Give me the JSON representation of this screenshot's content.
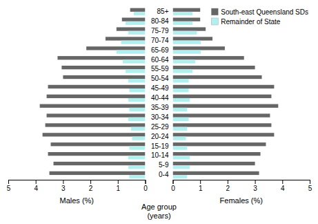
{
  "chart_data": [
    {
      "type": "bar",
      "orientation": "horizontal",
      "tick_labels": "x",
      "xlabel": "Males (%)",
      "categories": [
        "0-4",
        "5-9",
        "10-14",
        "15-19",
        "20-24",
        "25-29",
        "30-34",
        "35-39",
        "40-44",
        "45-49",
        "50-54",
        "55-59",
        "60-64",
        "65-69",
        "70-74",
        "75-79",
        "80-84",
        "85+"
      ],
      "series": [
        {
          "color": "#666666",
          "values": [
            3.5,
            3.35,
            3.55,
            3.45,
            3.75,
            3.65,
            3.6,
            3.85,
            3.6,
            3.55,
            3.0,
            3.05,
            3.2,
            2.15,
            1.45,
            1.05,
            0.85,
            0.55
          ]
        },
        {
          "color": "#b2f0f0",
          "values": [
            0.58,
            0.62,
            0.62,
            0.58,
            0.48,
            0.52,
            0.62,
            0.58,
            0.62,
            0.58,
            0.62,
            0.72,
            0.82,
            1.05,
            0.88,
            0.62,
            0.72,
            0.42
          ]
        }
      ],
      "xlim": [
        5,
        0
      ],
      "xticks": [
        5,
        4,
        3,
        2,
        1,
        0
      ]
    },
    {
      "type": "bar",
      "orientation": "horizontal",
      "xlabel": "Females (%)",
      "ylabel": "Age group\n(years)",
      "categories": [
        "0-4",
        "5-9",
        "10-14",
        "15-19",
        "20-24",
        "25-29",
        "30-34",
        "35-39",
        "40-44",
        "45-49",
        "50-54",
        "55-59",
        "60-64",
        "65-69",
        "70-74",
        "75-79",
        "80-84",
        "85+"
      ],
      "series": [
        {
          "name": "South-east Queensland SDs",
          "color": "#666666",
          "values": [
            3.15,
            3.0,
            3.2,
            3.4,
            3.7,
            3.6,
            3.55,
            3.85,
            3.6,
            3.7,
            3.25,
            3.0,
            2.6,
            1.9,
            1.45,
            1.2,
            1.0,
            1.0
          ]
        },
        {
          "name": "Remainder of State",
          "color": "#b2f0f0",
          "values": [
            0.52,
            0.62,
            0.62,
            0.52,
            0.48,
            0.52,
            0.58,
            0.52,
            0.62,
            0.58,
            0.58,
            0.72,
            0.82,
            1.02,
            1.02,
            0.88,
            0.72,
            0.72
          ]
        }
      ],
      "xlim": [
        0,
        5
      ],
      "xticks": [
        0,
        1,
        2,
        3,
        4,
        5
      ],
      "legend": "upper right"
    }
  ]
}
